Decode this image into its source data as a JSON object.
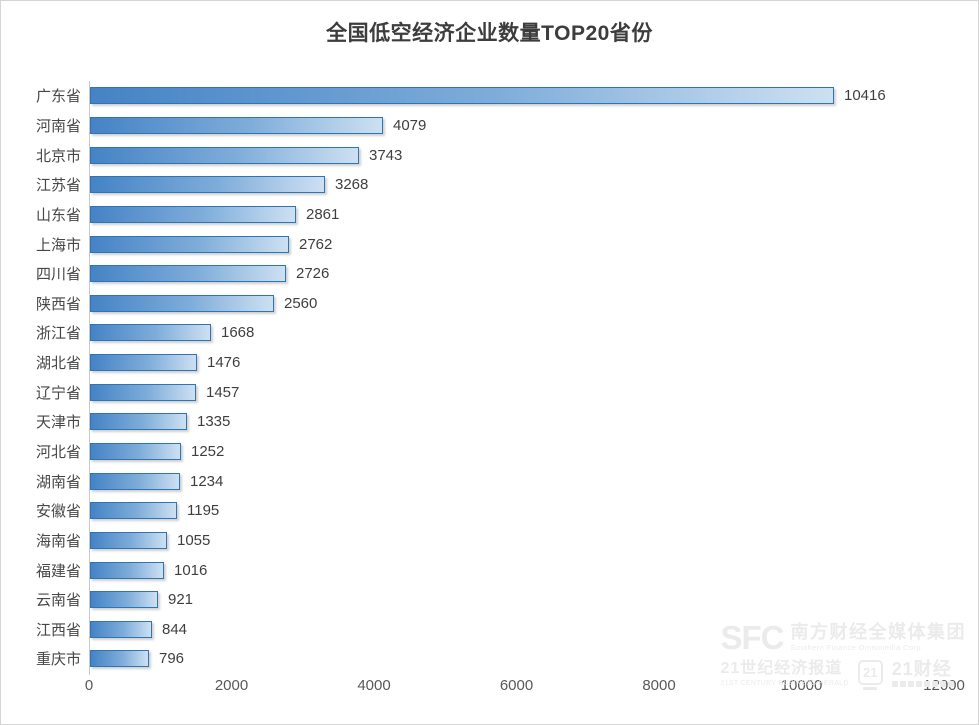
{
  "chart_data": {
    "type": "bar",
    "orientation": "horizontal",
    "title": "全国低空经济企业数量TOP20省份",
    "categories": [
      "广东省",
      "河南省",
      "北京市",
      "江苏省",
      "山东省",
      "上海市",
      "四川省",
      "陕西省",
      "浙江省",
      "湖北省",
      "辽宁省",
      "天津市",
      "河北省",
      "湖南省",
      "安徽省",
      "海南省",
      "福建省",
      "云南省",
      "江西省",
      "重庆市"
    ],
    "values": [
      10416,
      4079,
      3743,
      3268,
      2861,
      2762,
      2726,
      2560,
      1668,
      1476,
      1457,
      1335,
      1252,
      1234,
      1195,
      1055,
      1016,
      921,
      844,
      796
    ],
    "xlabel": "",
    "ylabel": "",
    "xlim": [
      0,
      12000
    ],
    "x_ticks": [
      "0",
      "2000",
      "4000",
      "6000",
      "8000",
      "10000",
      "12000"
    ],
    "grid": false,
    "legend": false,
    "data_labels": true,
    "bar_border_color": "#2e75b6",
    "bar_gradient_start": "#4583c5",
    "bar_gradient_end": "#cde0f2"
  },
  "watermark": {
    "sfc_logo": "SFC",
    "org_cn": "南方财经全媒体集团",
    "org_en": "Southern Finance Omnimedia Corp.",
    "paper_cn": "21世纪经济报道",
    "paper_en": "21ST CENTURY BUSINESS HERALD",
    "badge": "21",
    "app_cn": "21财经"
  }
}
